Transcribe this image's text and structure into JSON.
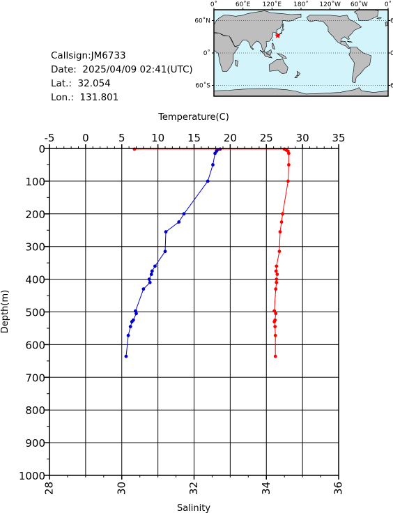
{
  "info": {
    "callsign": "Callsign:JM6733",
    "date": "Date:  2025/04/09 02:41(UTC)",
    "lat": "Lat.:  32.054",
    "lon": "Lon.:  131.801"
  },
  "map": {
    "lon_labels": [
      "0˚",
      "60˚E",
      "120˚E",
      "180˚",
      "120˚W",
      "60˚W",
      "0˚"
    ],
    "lat_labels": [
      "60˚N",
      "0˚",
      "60˚S"
    ],
    "ocean_color": "#d4f4fb",
    "land_color": "#bebebe",
    "marker_color": "#ff0000",
    "marker_lon": 131.801,
    "marker_lat": 32.054
  },
  "chart_data": {
    "type": "line",
    "ylabel": "Depth(m)",
    "y_ticks": [
      0,
      100,
      200,
      300,
      400,
      500,
      600,
      700,
      800,
      900,
      1000
    ],
    "ylim": [
      1000,
      0
    ],
    "temperature_axis": {
      "label": "Temperature(C)",
      "ticks": [
        -5,
        0,
        5,
        10,
        15,
        20,
        25,
        30,
        35
      ],
      "range": [
        -5,
        35
      ]
    },
    "salinity_axis": {
      "label": "Salinity",
      "ticks": [
        28,
        30,
        32,
        34,
        36
      ],
      "range": [
        28,
        36
      ]
    },
    "grid": true,
    "series": [
      {
        "axis": "temperature",
        "color": "#0000cc",
        "points": [
          [
            18.6,
            2
          ],
          [
            18.2,
            5
          ],
          [
            18.1,
            8
          ],
          [
            17.9,
            15
          ],
          [
            17.6,
            50
          ],
          [
            16.9,
            100
          ],
          [
            13.6,
            200
          ],
          [
            12.9,
            225
          ],
          [
            11.1,
            255
          ],
          [
            11.0,
            315
          ],
          [
            9.6,
            360
          ],
          [
            9.2,
            375
          ],
          [
            9.1,
            385
          ],
          [
            8.8,
            400
          ],
          [
            8.9,
            410
          ],
          [
            8.0,
            430
          ],
          [
            6.9,
            497
          ],
          [
            7.0,
            505
          ],
          [
            6.6,
            525
          ],
          [
            6.4,
            530
          ],
          [
            6.2,
            545
          ],
          [
            5.9,
            572
          ],
          [
            5.6,
            636
          ]
        ]
      },
      {
        "axis": "salinity",
        "color": "#ff0000",
        "points": [
          [
            30.35,
            2
          ],
          [
            34.5,
            2
          ],
          [
            34.55,
            5
          ],
          [
            34.6,
            8
          ],
          [
            34.62,
            15
          ],
          [
            34.62,
            50
          ],
          [
            34.6,
            100
          ],
          [
            34.45,
            200
          ],
          [
            34.42,
            225
          ],
          [
            34.38,
            255
          ],
          [
            34.36,
            315
          ],
          [
            34.28,
            360
          ],
          [
            34.27,
            375
          ],
          [
            34.3,
            385
          ],
          [
            34.28,
            400
          ],
          [
            34.28,
            410
          ],
          [
            34.26,
            430
          ],
          [
            34.22,
            497
          ],
          [
            34.26,
            505
          ],
          [
            34.24,
            525
          ],
          [
            34.22,
            530
          ],
          [
            34.24,
            545
          ],
          [
            34.25,
            572
          ],
          [
            34.25,
            636
          ]
        ]
      }
    ]
  }
}
